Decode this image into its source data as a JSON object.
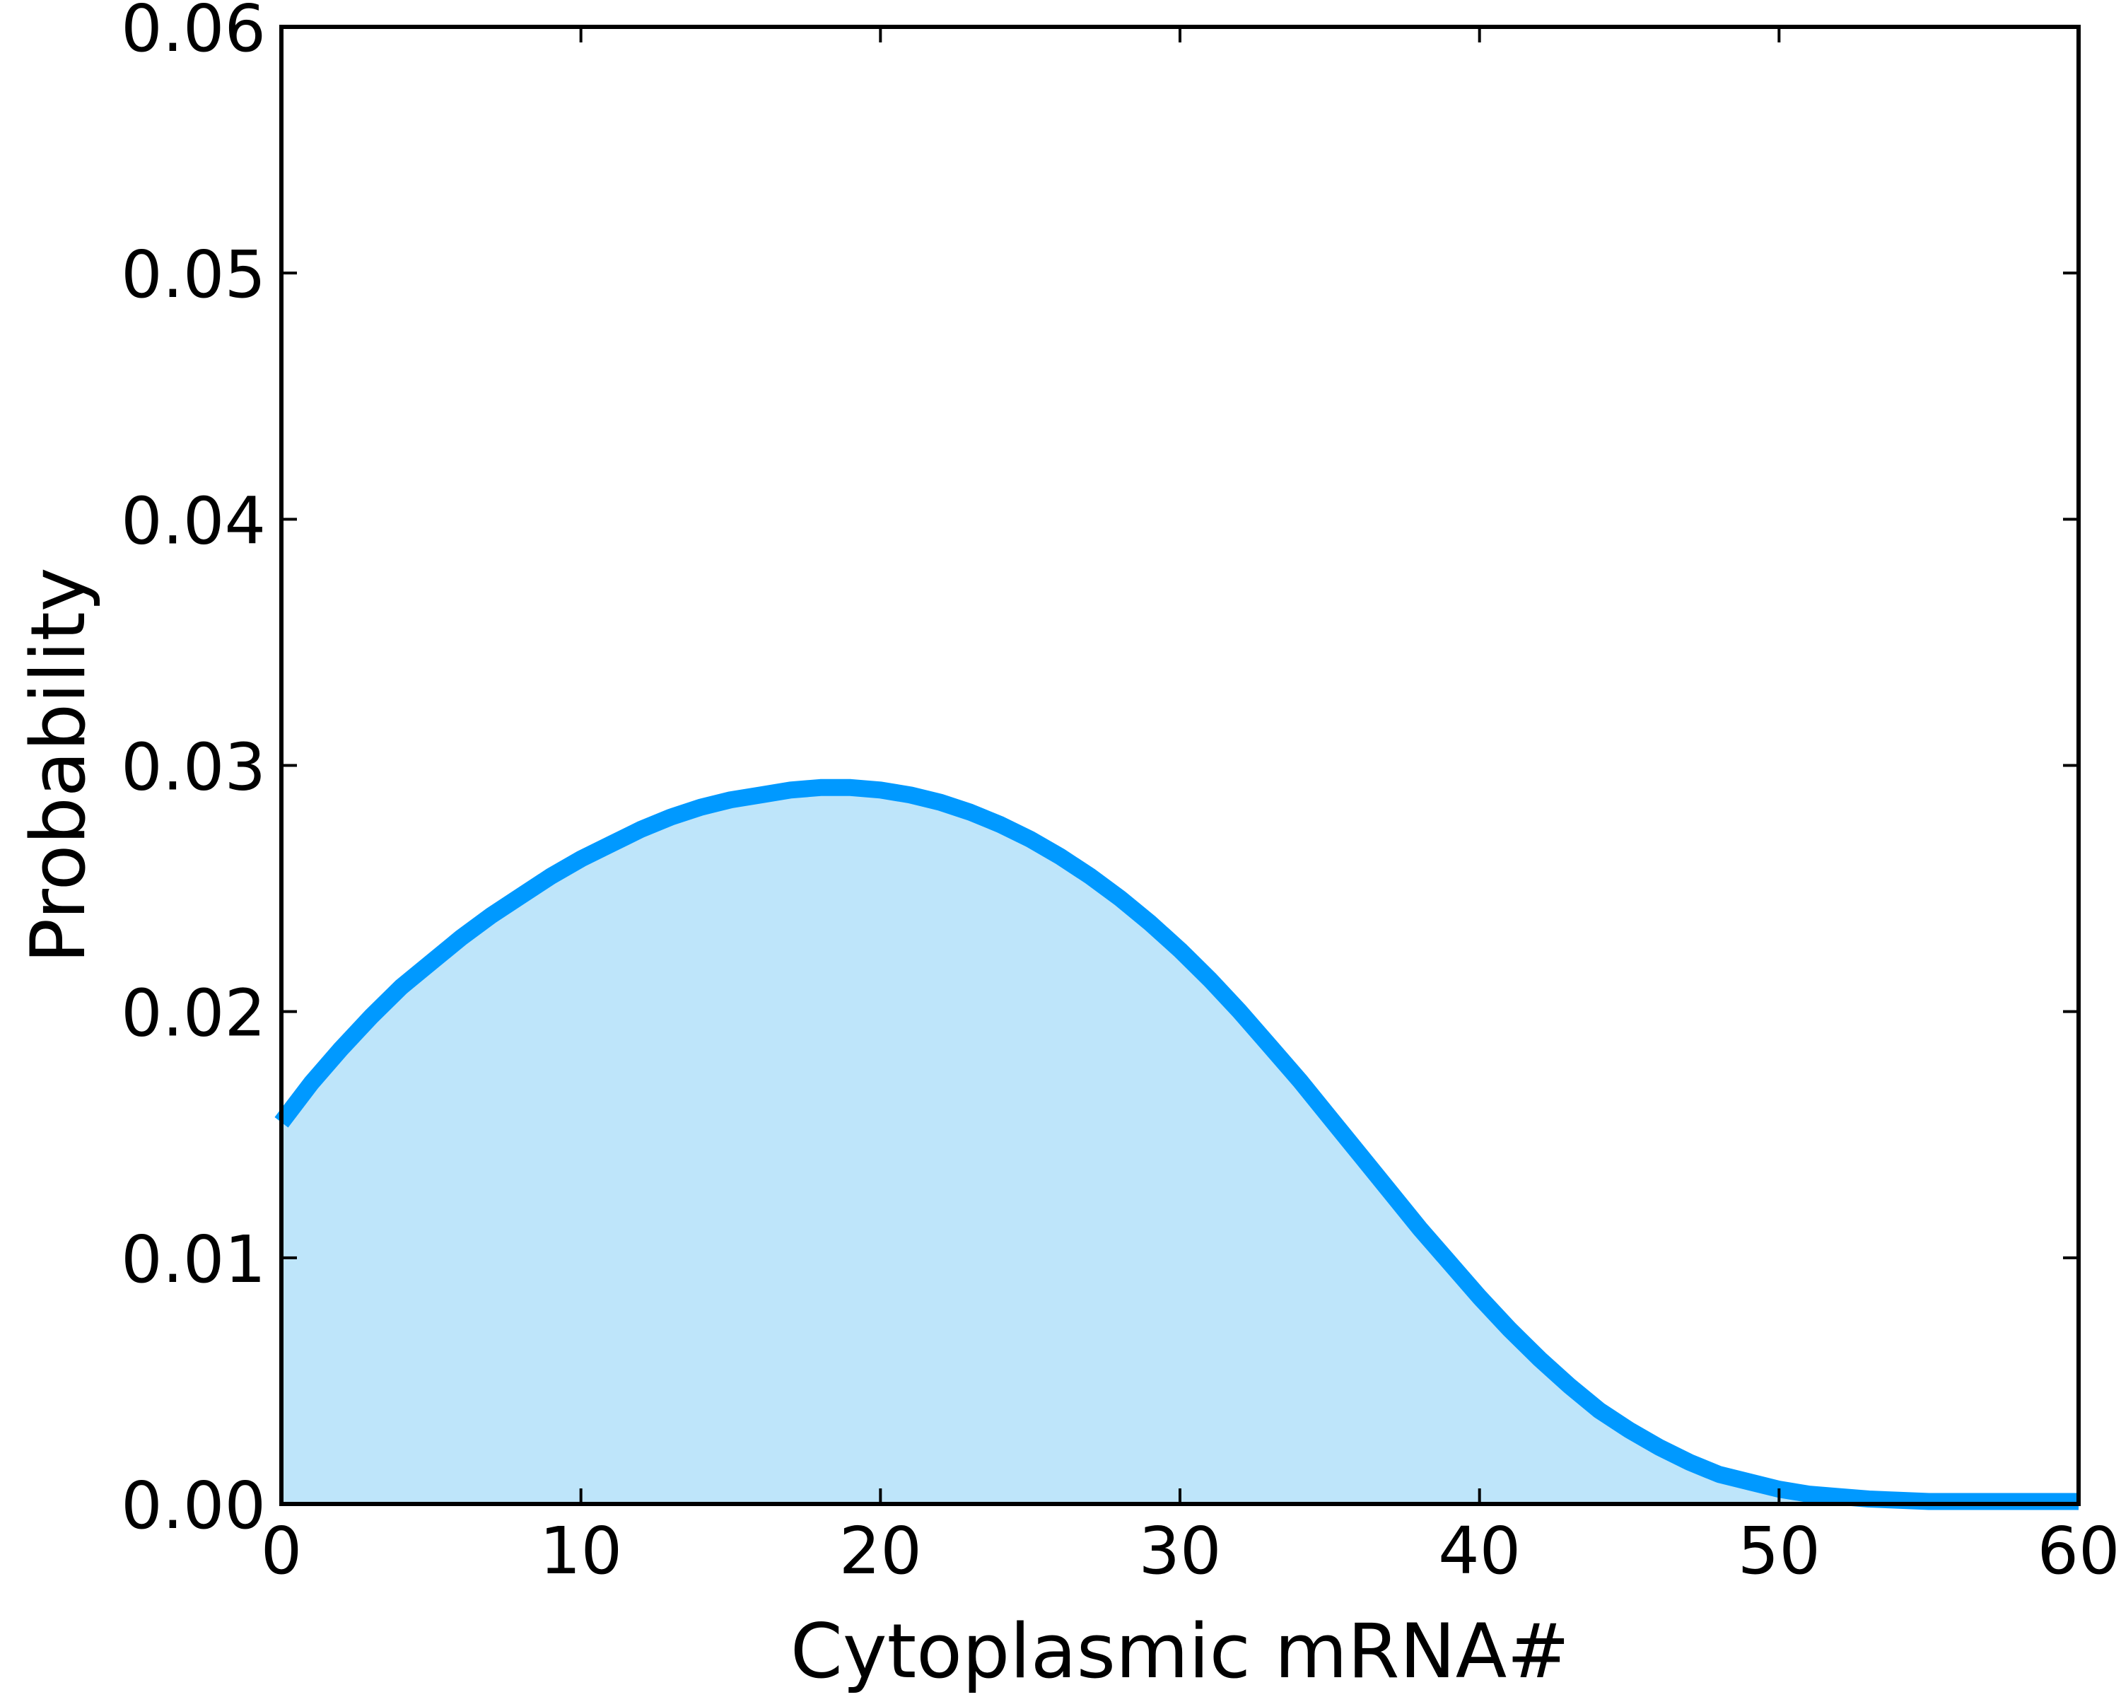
{
  "chart_data": {
    "type": "area",
    "title": "",
    "xlabel": "Cytoplasmic mRNA#",
    "ylabel": "Probability",
    "xlim": [
      0,
      60
    ],
    "ylim": [
      0,
      0.06
    ],
    "xticks": [
      0,
      10,
      20,
      30,
      40,
      50,
      60
    ],
    "yticks": [
      0,
      0.01,
      0.02,
      0.03,
      0.04,
      0.05,
      0.06
    ],
    "xtick_labels": [
      "0",
      "10",
      "20",
      "30",
      "40",
      "50",
      "60"
    ],
    "ytick_labels": [
      "0.00",
      "0.01",
      "0.02",
      "0.03",
      "0.04",
      "0.05",
      "0.06"
    ],
    "grid": false,
    "series": [
      {
        "line_color": "#0099ff",
        "fill_color": "#bee5fa",
        "x": [
          0,
          1,
          2,
          3,
          4,
          5,
          6,
          7,
          8,
          9,
          10,
          11,
          12,
          13,
          14,
          15,
          16,
          17,
          18,
          19,
          20,
          21,
          22,
          23,
          24,
          25,
          26,
          27,
          28,
          29,
          30,
          31,
          32,
          33,
          34,
          35,
          36,
          37,
          38,
          39,
          40,
          41,
          42,
          43,
          44,
          45,
          46,
          47,
          48,
          49,
          50,
          51,
          52,
          53,
          54,
          55,
          56,
          57,
          58,
          59,
          60
        ],
        "y": [
          0.0155,
          0.0171,
          0.0185,
          0.0198,
          0.021,
          0.022,
          0.023,
          0.0239,
          0.0247,
          0.0255,
          0.0262,
          0.0268,
          0.0274,
          0.0279,
          0.0283,
          0.0286,
          0.0288,
          0.029,
          0.0291,
          0.0291,
          0.029,
          0.0288,
          0.0285,
          0.0281,
          0.0276,
          0.027,
          0.0263,
          0.0255,
          0.0246,
          0.0236,
          0.0225,
          0.0213,
          0.02,
          0.0186,
          0.0172,
          0.0157,
          0.0142,
          0.0127,
          0.0112,
          0.0098,
          0.0084,
          0.0071,
          0.0059,
          0.0048,
          0.0038,
          0.003,
          0.0023,
          0.0017,
          0.0012,
          0.0009,
          0.0006,
          0.0004,
          0.0003,
          0.0002,
          0.00015,
          0.0001,
          0.0001,
          0.0001,
          0.0001,
          0.0001,
          0.0001
        ]
      }
    ]
  }
}
